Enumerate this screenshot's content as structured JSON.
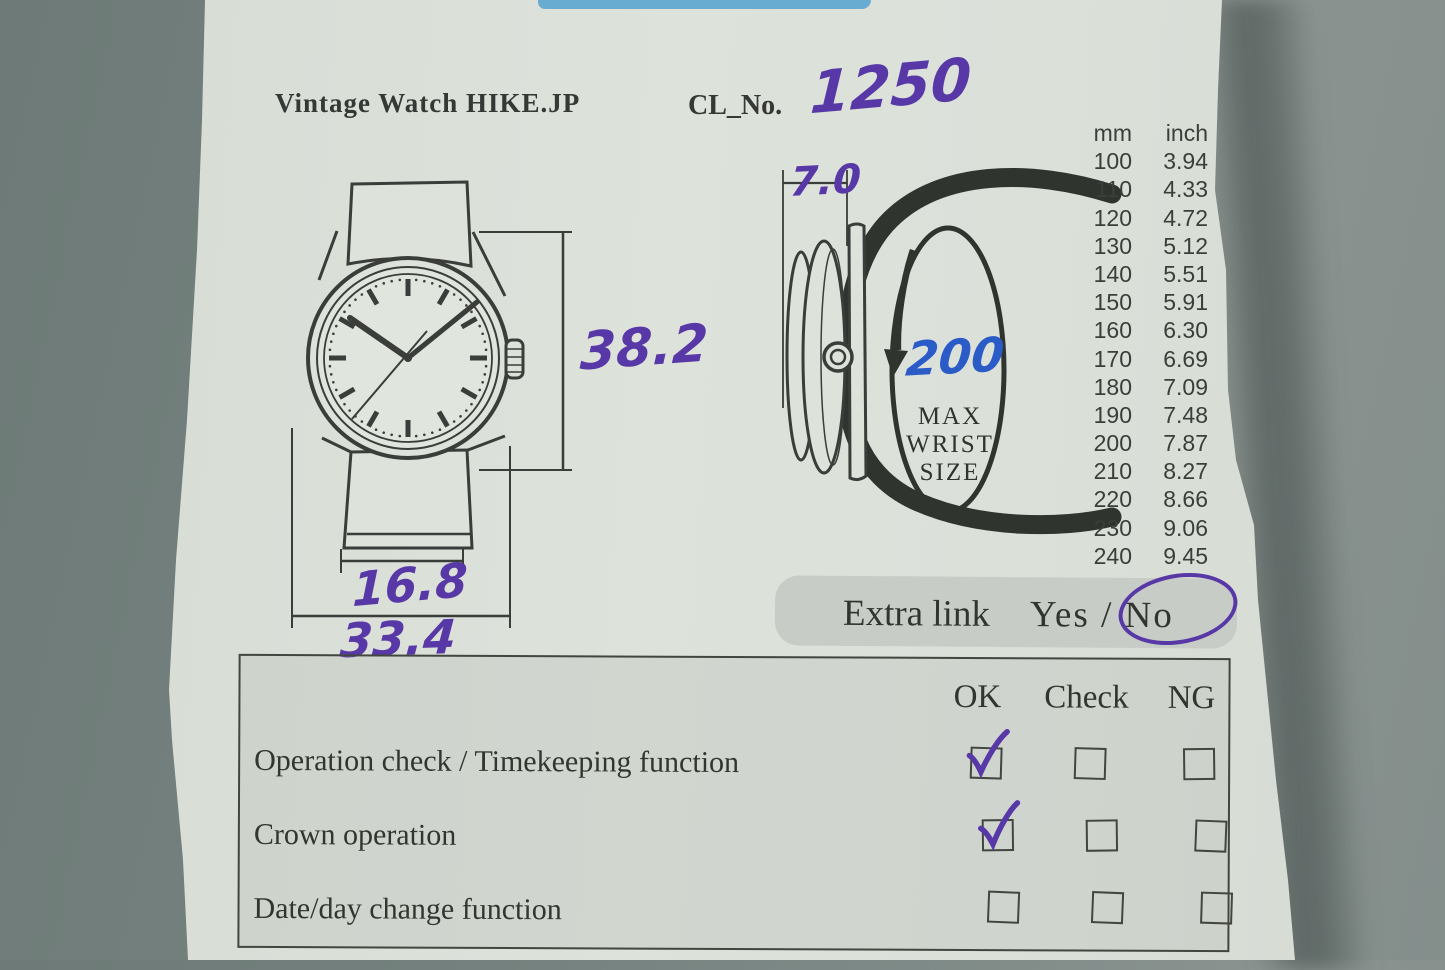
{
  "header": {
    "brand": "Vintage Watch HIKE.JP",
    "cl_label": "CL_No.",
    "cl_value": "1250"
  },
  "watch_front": {
    "lug_to_lug_mm": "38.2",
    "strap_width_mm": "16.8",
    "case_width_mm": "33.4"
  },
  "watch_side": {
    "thickness_mm": "7.0",
    "wrist_value_mm": "200",
    "max_wrist_line1": "MAX",
    "max_wrist_line2": "WRIST",
    "max_wrist_line3": "SIZE"
  },
  "conversion_table": {
    "headers": [
      "mm",
      "inch"
    ],
    "rows": [
      [
        "100",
        "3.94"
      ],
      [
        "110",
        "4.33"
      ],
      [
        "120",
        "4.72"
      ],
      [
        "130",
        "5.12"
      ],
      [
        "140",
        "5.51"
      ],
      [
        "150",
        "5.91"
      ],
      [
        "160",
        "6.30"
      ],
      [
        "170",
        "6.69"
      ],
      [
        "180",
        "7.09"
      ],
      [
        "190",
        "7.48"
      ],
      [
        "200",
        "7.87"
      ],
      [
        "210",
        "8.27"
      ],
      [
        "220",
        "8.66"
      ],
      [
        "230",
        "9.06"
      ],
      [
        "240",
        "9.45"
      ]
    ]
  },
  "extra_link": {
    "label": "Extra link",
    "options": "Yes / No",
    "circled_option": "No"
  },
  "checklist": {
    "columns": [
      "OK",
      "Check",
      "NG"
    ],
    "rows": [
      {
        "label": "Operation check / Timekeeping function",
        "ok": true,
        "check": false,
        "ng": false
      },
      {
        "label": "Crown operation",
        "ok": true,
        "check": false,
        "ng": false
      },
      {
        "label": "Date/day change function",
        "ok": false,
        "check": false,
        "ng": false
      }
    ]
  },
  "colors": {
    "handwriting_purple": "#5838a6",
    "handwriting_blue": "#2b5bc7",
    "tape_blue": "#69acd2",
    "paper": "#dde2db",
    "print_ink": "#3a3d39"
  }
}
